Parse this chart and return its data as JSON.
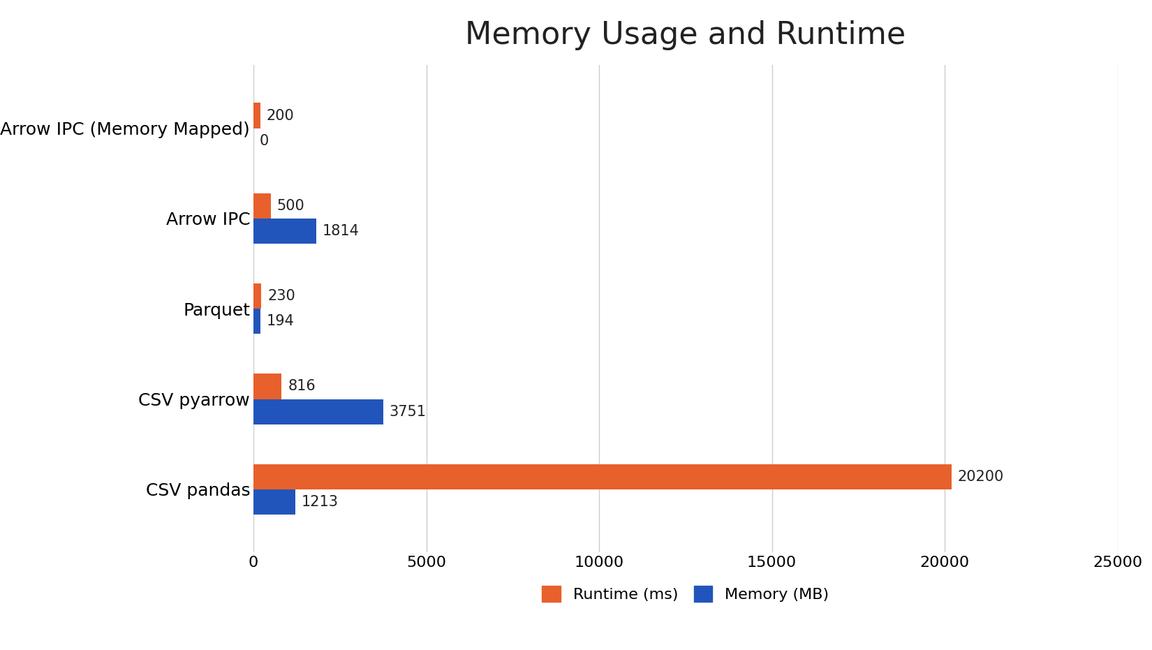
{
  "title": "Memory Usage and Runtime",
  "title_fontsize": 32,
  "categories": [
    "CSV pandas",
    "CSV pyarrow",
    "Parquet",
    "Arrow IPC",
    "Arrow IPC (Memory Mapped)"
  ],
  "runtime_ms": [
    20200,
    816,
    230,
    500,
    200
  ],
  "memory_mb": [
    1213,
    3751,
    194,
    1814,
    0
  ],
  "runtime_color": "#E8602C",
  "memory_color": "#2255BB",
  "bar_height": 0.28,
  "xlim": [
    0,
    25000
  ],
  "xticks": [
    0,
    5000,
    10000,
    15000,
    20000,
    25000
  ],
  "tick_fontsize": 16,
  "ylabel_fontsize": 18,
  "legend_fontsize": 16,
  "annotation_fontsize": 15,
  "background_color": "#ffffff",
  "grid_color": "#cccccc",
  "legend_labels": [
    "Runtime (ms)",
    "Memory (MB)"
  ]
}
